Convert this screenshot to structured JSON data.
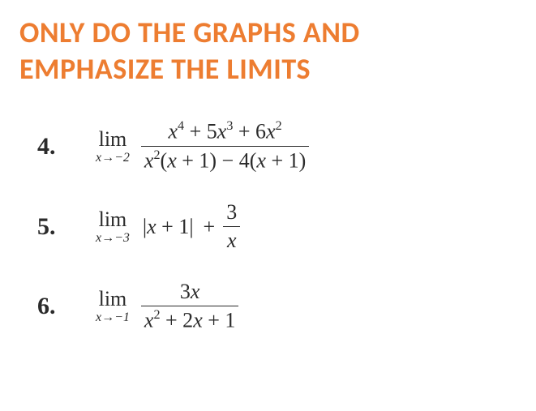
{
  "headline": {
    "line1": "ONLY DO THE GRAPHS AND",
    "line2": "EMPHASIZE THE LIMITS",
    "color": "#ed7d31",
    "font_family": "Calibri",
    "font_weight": 700,
    "font_size_pt": 27
  },
  "body": {
    "text_color": "#2b2b2b",
    "font_family": "Times New Roman",
    "background_color": "#ffffff"
  },
  "problems": [
    {
      "number": "4.",
      "limit_subscript": "x → −2",
      "numerator": "x⁴ + 5x³ + 6x²",
      "denominator": "x²(x + 1) − 4(x + 1)"
    },
    {
      "number": "5.",
      "limit_subscript": "x → −3",
      "body_before_fraction": "|x + 1| +",
      "frac_numerator": "3",
      "frac_denominator": "x"
    },
    {
      "number": "6.",
      "limit_subscript": "x → −1",
      "numerator": "3x",
      "denominator": "x² + 2x + 1"
    }
  ]
}
